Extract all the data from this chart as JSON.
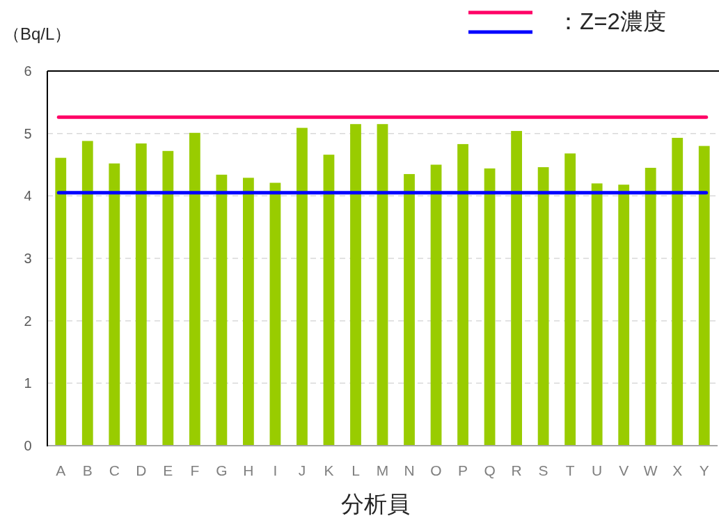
{
  "chart_data": {
    "type": "bar",
    "ylabel": "（Bq/L）",
    "xlabel": "分析員",
    "annotations": [
      "：Z=2濃度"
    ],
    "categories": [
      "A",
      "B",
      "C",
      "D",
      "E",
      "F",
      "G",
      "H",
      "I",
      "J",
      "K",
      "L",
      "M",
      "N",
      "O",
      "P",
      "Q",
      "R",
      "S",
      "T",
      "U",
      "V",
      "W",
      "X",
      "Y"
    ],
    "values": [
      4.61,
      4.88,
      4.52,
      4.84,
      4.72,
      5.01,
      4.34,
      4.29,
      4.21,
      5.09,
      4.66,
      5.15,
      5.15,
      4.35,
      4.5,
      4.83,
      4.44,
      5.04,
      4.46,
      4.68,
      4.2,
      4.18,
      4.45,
      4.93,
      4.8
    ],
    "color": "#99cc00",
    "ylim": [
      0,
      6
    ],
    "yticks": [
      0,
      1,
      2,
      3,
      4,
      5,
      6
    ],
    "grid": "y",
    "ref_lines": [
      {
        "axis": "y",
        "value": 5.26,
        "color": "#ff0066"
      },
      {
        "axis": "y",
        "value": 4.05,
        "color": "#0000ff"
      }
    ]
  }
}
